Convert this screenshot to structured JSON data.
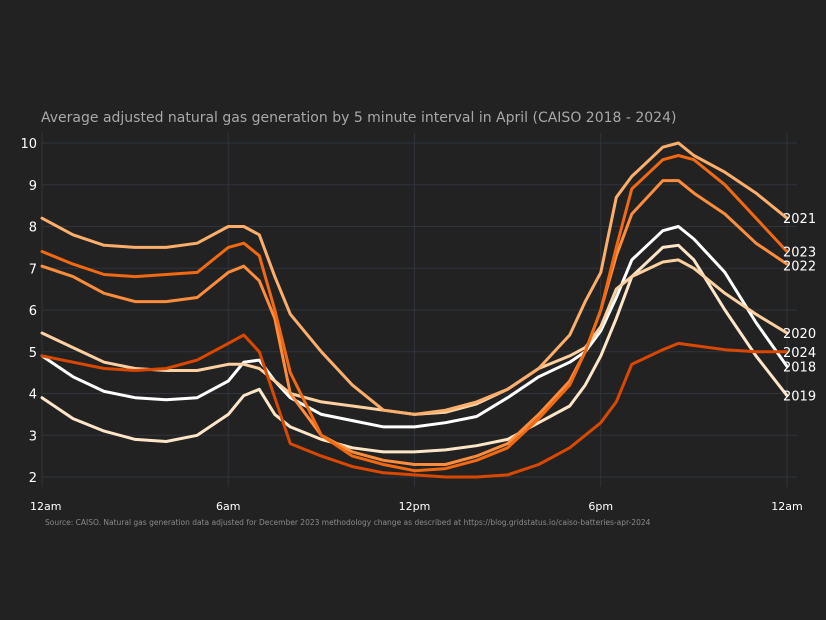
{
  "chart_data": {
    "type": "line",
    "title": "Average adjusted natural gas generation by 5 minute interval in April (CAISO 2018 - 2024)",
    "source": "Source: CAISO. Natural gas generation data adjusted for December 2023 methodology change as described at https://blog.gridstatus.io/caiso-batteries-apr-2024",
    "xlabel": "",
    "ylabel": "",
    "xlim": [
      0,
      24
    ],
    "ylim": [
      2,
      10
    ],
    "grid": true,
    "legend": "direct labels at right end of lines",
    "x_ticks": [
      {
        "value": 0,
        "label": "12am"
      },
      {
        "value": 6,
        "label": "6am"
      },
      {
        "value": 12,
        "label": "12pm"
      },
      {
        "value": 18,
        "label": "6pm"
      },
      {
        "value": 24,
        "label": "12am"
      }
    ],
    "y_ticks": [
      {
        "value": 2,
        "label": "2"
      },
      {
        "value": 3,
        "label": "3"
      },
      {
        "value": 4,
        "label": "4"
      },
      {
        "value": 5,
        "label": "5"
      },
      {
        "value": 6,
        "label": "6"
      },
      {
        "value": 7,
        "label": "7"
      },
      {
        "value": 8,
        "label": "8"
      },
      {
        "value": 9,
        "label": "9"
      },
      {
        "value": 10,
        "label": "10"
      }
    ],
    "x_hours": [
      0,
      1,
      2,
      3,
      4,
      5,
      6,
      6.5,
      7,
      7.5,
      8,
      9,
      10,
      11,
      12,
      13,
      14,
      15,
      16,
      17,
      17.5,
      18,
      18.5,
      19,
      20,
      20.5,
      21,
      22,
      23,
      24
    ],
    "series": [
      {
        "name": "2018",
        "color": "#ffffff",
        "values": [
          4.9,
          4.4,
          4.05,
          3.9,
          3.85,
          3.9,
          4.3,
          4.75,
          4.8,
          4.3,
          3.9,
          3.5,
          3.35,
          3.2,
          3.2,
          3.3,
          3.45,
          3.9,
          4.4,
          4.75,
          5.0,
          5.5,
          6.3,
          7.2,
          7.9,
          8.0,
          7.7,
          6.9,
          5.7,
          4.65
        ]
      },
      {
        "name": "2019",
        "color": "#fde6c8",
        "values": [
          3.9,
          3.4,
          3.1,
          2.9,
          2.85,
          3.0,
          3.5,
          3.95,
          4.1,
          3.5,
          3.2,
          2.9,
          2.7,
          2.6,
          2.6,
          2.65,
          2.75,
          2.9,
          3.3,
          3.7,
          4.2,
          4.9,
          5.8,
          6.8,
          7.5,
          7.55,
          7.2,
          6.0,
          4.9,
          3.95
        ]
      },
      {
        "name": "2020",
        "color": "#fdd0a2",
        "values": [
          5.45,
          5.1,
          4.75,
          4.6,
          4.55,
          4.55,
          4.7,
          4.7,
          4.6,
          4.3,
          4.0,
          3.8,
          3.7,
          3.6,
          3.5,
          3.55,
          3.75,
          4.1,
          4.6,
          4.9,
          5.1,
          5.6,
          6.5,
          6.8,
          7.15,
          7.2,
          7.0,
          6.4,
          5.9,
          5.45
        ]
      },
      {
        "name": "2021",
        "color": "#fdae6b",
        "values": [
          8.2,
          7.8,
          7.55,
          7.5,
          7.5,
          7.6,
          8.0,
          8.0,
          7.8,
          6.8,
          5.9,
          5.0,
          4.2,
          3.6,
          3.5,
          3.6,
          3.8,
          4.1,
          4.6,
          5.4,
          6.2,
          6.9,
          8.7,
          9.2,
          9.9,
          10.0,
          9.7,
          9.3,
          8.8,
          8.2
        ]
      },
      {
        "name": "2022",
        "color": "#fd8d3c",
        "values": [
          7.05,
          6.8,
          6.4,
          6.2,
          6.2,
          6.3,
          6.9,
          7.05,
          6.7,
          5.8,
          4.0,
          3.0,
          2.6,
          2.4,
          2.3,
          2.3,
          2.5,
          2.8,
          3.5,
          4.3,
          5.0,
          6.0,
          7.3,
          8.3,
          9.1,
          9.1,
          8.8,
          8.3,
          7.6,
          7.1
        ]
      },
      {
        "name": "2023",
        "color": "#f16913",
        "values": [
          7.4,
          7.1,
          6.85,
          6.8,
          6.85,
          6.9,
          7.5,
          7.6,
          7.3,
          6.0,
          4.5,
          3.0,
          2.5,
          2.3,
          2.15,
          2.2,
          2.4,
          2.7,
          3.4,
          4.2,
          5.0,
          6.0,
          7.5,
          8.9,
          9.6,
          9.7,
          9.6,
          9.0,
          8.2,
          7.4
        ]
      },
      {
        "name": "2024",
        "color": "#d94801",
        "values": [
          4.9,
          4.75,
          4.6,
          4.55,
          4.6,
          4.8,
          5.2,
          5.4,
          5.0,
          3.9,
          2.8,
          2.5,
          2.25,
          2.1,
          2.05,
          2.0,
          2.0,
          2.05,
          2.3,
          2.7,
          3.0,
          3.3,
          3.8,
          4.7,
          5.05,
          5.2,
          5.15,
          5.05,
          5.0,
          5.0
        ]
      }
    ],
    "label_order": [
      "2021",
      "2023",
      "2022",
      "2020",
      "2024",
      "2018",
      "2019"
    ]
  }
}
